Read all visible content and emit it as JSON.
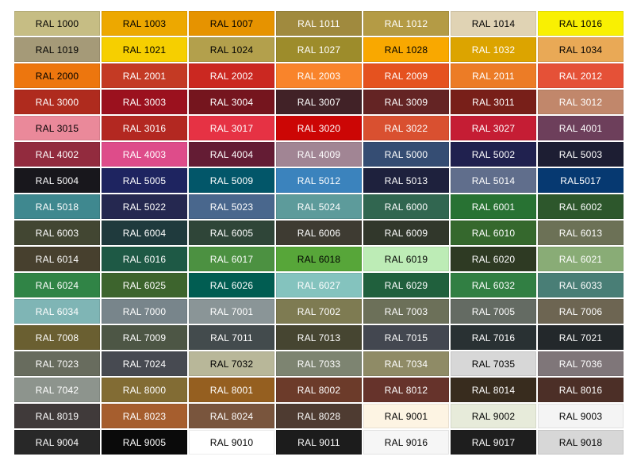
{
  "page": {
    "background": "#FFFFFF"
  },
  "chart_data": {
    "type": "table",
    "grid": {
      "columns": 7,
      "rows": 17
    },
    "swatches": [
      {
        "code": "RAL 1000",
        "hex": "#C6BD84",
        "label_color": "#000000"
      },
      {
        "code": "RAL 1003",
        "hex": "#EDA800",
        "label_color": "#000000"
      },
      {
        "code": "RAL 1007",
        "hex": "#E69300",
        "label_color": "#000000"
      },
      {
        "code": "RAL 1011",
        "hex": "#A08A3E",
        "label_color": "#FFFFFF"
      },
      {
        "code": "RAL 1012",
        "hex": "#B49B45",
        "label_color": "#FFFFFF"
      },
      {
        "code": "RAL 1014",
        "hex": "#E0D3B4",
        "label_color": "#000000"
      },
      {
        "code": "RAL 1016",
        "hex": "#F9F002",
        "label_color": "#000000"
      },
      {
        "code": "RAL 1019",
        "hex": "#A59A78",
        "label_color": "#000000"
      },
      {
        "code": "RAL 1021",
        "hex": "#F6CF00",
        "label_color": "#000000"
      },
      {
        "code": "RAL 1024",
        "hex": "#B3A04C",
        "label_color": "#000000"
      },
      {
        "code": "RAL 1027",
        "hex": "#9D8C2B",
        "label_color": "#FFFFFF"
      },
      {
        "code": "RAL 1028",
        "hex": "#F9A800",
        "label_color": "#000000"
      },
      {
        "code": "RAL 1032",
        "hex": "#DCA400",
        "label_color": "#FFFFFF"
      },
      {
        "code": "RAL 1034",
        "hex": "#E9A956",
        "label_color": "#000000"
      },
      {
        "code": "RAL 2000",
        "hex": "#ED760E",
        "label_color": "#000000"
      },
      {
        "code": "RAL 2001",
        "hex": "#C43A24",
        "label_color": "#FFFFFF"
      },
      {
        "code": "RAL 2002",
        "hex": "#CB2821",
        "label_color": "#FFFFFF"
      },
      {
        "code": "RAL 2003",
        "hex": "#F9842B",
        "label_color": "#FFFFFF"
      },
      {
        "code": "RAL 2009",
        "hex": "#E5521F",
        "label_color": "#FFFFFF"
      },
      {
        "code": "RAL 2011",
        "hex": "#EC7C26",
        "label_color": "#FFFFFF"
      },
      {
        "code": "RAL 2012",
        "hex": "#E55137",
        "label_color": "#FFFFFF"
      },
      {
        "code": "RAL 3000",
        "hex": "#AF2B1E",
        "label_color": "#FFFFFF"
      },
      {
        "code": "RAL 3003",
        "hex": "#9B111E",
        "label_color": "#FFFFFF"
      },
      {
        "code": "RAL 3004",
        "hex": "#75151E",
        "label_color": "#FFFFFF"
      },
      {
        "code": "RAL 3007",
        "hex": "#412227",
        "label_color": "#FFFFFF"
      },
      {
        "code": "RAL 3009",
        "hex": "#642424",
        "label_color": "#FFFFFF"
      },
      {
        "code": "RAL 3011",
        "hex": "#781F19",
        "label_color": "#FFFFFF"
      },
      {
        "code": "RAL 3012",
        "hex": "#C1876B",
        "label_color": "#FFFFFF"
      },
      {
        "code": "RAL 3015",
        "hex": "#EA899A",
        "label_color": "#000000"
      },
      {
        "code": "RAL 3016",
        "hex": "#B32821",
        "label_color": "#FFFFFF"
      },
      {
        "code": "RAL 3017",
        "hex": "#E63244",
        "label_color": "#FFFFFF"
      },
      {
        "code": "RAL 3020",
        "hex": "#CC0605",
        "label_color": "#FFFFFF"
      },
      {
        "code": "RAL 3022",
        "hex": "#D95030",
        "label_color": "#FFFFFF"
      },
      {
        "code": "RAL 3027",
        "hex": "#C51D34",
        "label_color": "#FFFFFF"
      },
      {
        "code": "RAL 4001",
        "hex": "#6D3F5B",
        "label_color": "#FFFFFF"
      },
      {
        "code": "RAL 4002",
        "hex": "#922B3E",
        "label_color": "#FFFFFF"
      },
      {
        "code": "RAL 4003",
        "hex": "#DE4C8A",
        "label_color": "#FFFFFF"
      },
      {
        "code": "RAL 4004",
        "hex": "#641C34",
        "label_color": "#FFFFFF"
      },
      {
        "code": "RAL 4009",
        "hex": "#A18594",
        "label_color": "#FFFFFF"
      },
      {
        "code": "RAL 5000",
        "hex": "#354D73",
        "label_color": "#FFFFFF"
      },
      {
        "code": "RAL 5002",
        "hex": "#20214F",
        "label_color": "#FFFFFF"
      },
      {
        "code": "RAL 5003",
        "hex": "#1D1E33",
        "label_color": "#FFFFFF"
      },
      {
        "code": "RAL 5004",
        "hex": "#18171C",
        "label_color": "#FFFFFF"
      },
      {
        "code": "RAL 5005",
        "hex": "#1E2460",
        "label_color": "#FFFFFF"
      },
      {
        "code": "RAL 5009",
        "hex": "#025669",
        "label_color": "#FFFFFF"
      },
      {
        "code": "RAL 5012",
        "hex": "#3B83BD",
        "label_color": "#FFFFFF"
      },
      {
        "code": "RAL 5013",
        "hex": "#1E213D",
        "label_color": "#FFFFFF"
      },
      {
        "code": "RAL 5014",
        "hex": "#606E8C",
        "label_color": "#FFFFFF"
      },
      {
        "code": "RAL5017",
        "hex": "#063971",
        "label_color": "#FFFFFF"
      },
      {
        "code": "RAL 5018",
        "hex": "#3F888F",
        "label_color": "#FFFFFF"
      },
      {
        "code": "RAL 5022",
        "hex": "#252850",
        "label_color": "#FFFFFF"
      },
      {
        "code": "RAL 5023",
        "hex": "#49678D",
        "label_color": "#FFFFFF"
      },
      {
        "code": "RAL 5024",
        "hex": "#5D9B9B",
        "label_color": "#FFFFFF"
      },
      {
        "code": "RAL 6000",
        "hex": "#316650",
        "label_color": "#FFFFFF"
      },
      {
        "code": "RAL 6001",
        "hex": "#287233",
        "label_color": "#FFFFFF"
      },
      {
        "code": "RAL 6002",
        "hex": "#2D572C",
        "label_color": "#FFFFFF"
      },
      {
        "code": "RAL 6003",
        "hex": "#424632",
        "label_color": "#FFFFFF"
      },
      {
        "code": "RAL 6004",
        "hex": "#1F3A3D",
        "label_color": "#FFFFFF"
      },
      {
        "code": "RAL 6005",
        "hex": "#2F4538",
        "label_color": "#FFFFFF"
      },
      {
        "code": "RAL 6006",
        "hex": "#3E3B32",
        "label_color": "#FFFFFF"
      },
      {
        "code": "RAL 6009",
        "hex": "#31372B",
        "label_color": "#FFFFFF"
      },
      {
        "code": "RAL 6010",
        "hex": "#35682D",
        "label_color": "#FFFFFF"
      },
      {
        "code": "RAL 6013",
        "hex": "#6C7156",
        "label_color": "#FFFFFF"
      },
      {
        "code": "RAL 6014",
        "hex": "#47402E",
        "label_color": "#FFFFFF"
      },
      {
        "code": "RAL 6016",
        "hex": "#1E5945",
        "label_color": "#FFFFFF"
      },
      {
        "code": "RAL 6017",
        "hex": "#4C9141",
        "label_color": "#FFFFFF"
      },
      {
        "code": "RAL 6018",
        "hex": "#57A639",
        "label_color": "#000000"
      },
      {
        "code": "RAL 6019",
        "hex": "#BDECB6",
        "label_color": "#000000"
      },
      {
        "code": "RAL 6020",
        "hex": "#2E3A23",
        "label_color": "#FFFFFF"
      },
      {
        "code": "RAL 6021",
        "hex": "#89AC76",
        "label_color": "#FFFFFF"
      },
      {
        "code": "RAL 6024",
        "hex": "#308446",
        "label_color": "#FFFFFF"
      },
      {
        "code": "RAL 6025",
        "hex": "#3D642D",
        "label_color": "#FFFFFF"
      },
      {
        "code": "RAL 6026",
        "hex": "#015D52",
        "label_color": "#FFFFFF"
      },
      {
        "code": "RAL 6027",
        "hex": "#84C3BE",
        "label_color": "#FFFFFF"
      },
      {
        "code": "RAL 6029",
        "hex": "#20603D",
        "label_color": "#FFFFFF"
      },
      {
        "code": "RAL 6032",
        "hex": "#317F43",
        "label_color": "#FFFFFF"
      },
      {
        "code": "RAL 6033",
        "hex": "#497E76",
        "label_color": "#FFFFFF"
      },
      {
        "code": "RAL 6034",
        "hex": "#7FB5B5",
        "label_color": "#FFFFFF"
      },
      {
        "code": "RAL 7000",
        "hex": "#78858B",
        "label_color": "#FFFFFF"
      },
      {
        "code": "RAL 7001",
        "hex": "#8A9597",
        "label_color": "#FFFFFF"
      },
      {
        "code": "RAL 7002",
        "hex": "#7E7B52",
        "label_color": "#FFFFFF"
      },
      {
        "code": "RAL 7003",
        "hex": "#6C7059",
        "label_color": "#FFFFFF"
      },
      {
        "code": "RAL 7005",
        "hex": "#646B63",
        "label_color": "#FFFFFF"
      },
      {
        "code": "RAL 7006",
        "hex": "#6D6552",
        "label_color": "#FFFFFF"
      },
      {
        "code": "RAL 7008",
        "hex": "#6A5F31",
        "label_color": "#FFFFFF"
      },
      {
        "code": "RAL 7009",
        "hex": "#4D5645",
        "label_color": "#FFFFFF"
      },
      {
        "code": "RAL 7011",
        "hex": "#434B4D",
        "label_color": "#FFFFFF"
      },
      {
        "code": "RAL 7013",
        "hex": "#464531",
        "label_color": "#FFFFFF"
      },
      {
        "code": "RAL 7015",
        "hex": "#434750",
        "label_color": "#FFFFFF"
      },
      {
        "code": "RAL 7016",
        "hex": "#293133",
        "label_color": "#FFFFFF"
      },
      {
        "code": "RAL 7021",
        "hex": "#23282B",
        "label_color": "#FFFFFF"
      },
      {
        "code": "RAL 7023",
        "hex": "#686C5E",
        "label_color": "#FFFFFF"
      },
      {
        "code": "RAL 7024",
        "hex": "#474A51",
        "label_color": "#FFFFFF"
      },
      {
        "code": "RAL 7032",
        "hex": "#B8B799",
        "label_color": "#000000"
      },
      {
        "code": "RAL 7033",
        "hex": "#7D8471",
        "label_color": "#FFFFFF"
      },
      {
        "code": "RAL 7034",
        "hex": "#8F8B66",
        "label_color": "#FFFFFF"
      },
      {
        "code": "RAL 7035",
        "hex": "#D7D7D7",
        "label_color": "#000000"
      },
      {
        "code": "RAL 7036",
        "hex": "#7F7679",
        "label_color": "#FFFFFF"
      },
      {
        "code": "RAL 7042",
        "hex": "#8D948D",
        "label_color": "#FFFFFF"
      },
      {
        "code": "RAL 8000",
        "hex": "#826C34",
        "label_color": "#FFFFFF"
      },
      {
        "code": "RAL 8001",
        "hex": "#955F20",
        "label_color": "#FFFFFF"
      },
      {
        "code": "RAL 8002",
        "hex": "#6C3B2A",
        "label_color": "#FFFFFF"
      },
      {
        "code": "RAL 8012",
        "hex": "#66332B",
        "label_color": "#FFFFFF"
      },
      {
        "code": "RAL 8014",
        "hex": "#382C1E",
        "label_color": "#FFFFFF"
      },
      {
        "code": "RAL 8016",
        "hex": "#4C2F27",
        "label_color": "#FFFFFF"
      },
      {
        "code": "RAL 8019",
        "hex": "#403A3A",
        "label_color": "#FFFFFF"
      },
      {
        "code": "RAL 8023",
        "hex": "#A65E2E",
        "label_color": "#FFFFFF"
      },
      {
        "code": "RAL 8024",
        "hex": "#79553D",
        "label_color": "#FFFFFF"
      },
      {
        "code": "RAL 8028",
        "hex": "#4E3B31",
        "label_color": "#FFFFFF"
      },
      {
        "code": "RAL 9001",
        "hex": "#FDF4E3",
        "label_color": "#000000"
      },
      {
        "code": "RAL 9002",
        "hex": "#E7EBDA",
        "label_color": "#000000"
      },
      {
        "code": "RAL 9003",
        "hex": "#F4F4F4",
        "label_color": "#000000"
      },
      {
        "code": "RAL 9004",
        "hex": "#282828",
        "label_color": "#FFFFFF"
      },
      {
        "code": "RAL 9005",
        "hex": "#0A0A0A",
        "label_color": "#FFFFFF"
      },
      {
        "code": "RAL 9010",
        "hex": "#FFFFFF",
        "label_color": "#000000"
      },
      {
        "code": "RAL 9011",
        "hex": "#1C1C1C",
        "label_color": "#FFFFFF"
      },
      {
        "code": "RAL 9016",
        "hex": "#F6F6F6",
        "label_color": "#000000"
      },
      {
        "code": "RAL 9017",
        "hex": "#1E1E1E",
        "label_color": "#FFFFFF"
      },
      {
        "code": "RAL 9018",
        "hex": "#D7D7D7",
        "label_color": "#000000"
      }
    ]
  }
}
